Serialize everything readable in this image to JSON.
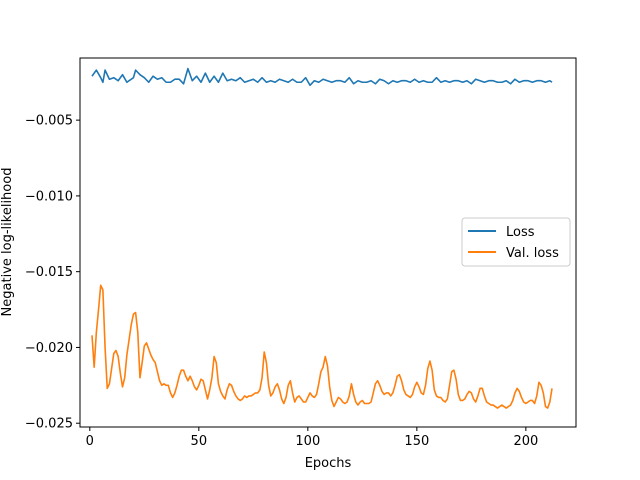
{
  "chart_data": {
    "type": "line",
    "title": "",
    "xlabel": "Epochs",
    "ylabel": "Negative log-likelihood",
    "xlim": [
      -4.5,
      223
    ],
    "ylim": [
      -0.02525,
      -0.0009
    ],
    "xticks": [
      0,
      50,
      100,
      150,
      200
    ],
    "xtick_labels": [
      "0",
      "50",
      "100",
      "150",
      "200"
    ],
    "yticks": [
      -0.025,
      -0.02,
      -0.015,
      -0.01,
      -0.005
    ],
    "ytick_labels": [
      "−0.025",
      "−0.020",
      "−0.015",
      "−0.010",
      "−0.005"
    ],
    "grid": false,
    "legend_position": "center-right",
    "series": [
      {
        "name": "Loss",
        "color": "#1f77b4",
        "x": [
          1,
          3,
          5,
          6,
          7,
          9,
          11,
          13,
          15,
          17,
          19,
          20,
          21,
          23,
          25,
          27,
          29,
          31,
          33,
          35,
          37,
          39,
          41,
          43,
          45,
          47,
          49,
          51,
          53,
          55,
          57,
          59,
          61,
          63,
          65,
          67,
          69,
          71,
          73,
          75,
          77,
          79,
          81,
          83,
          85,
          87,
          89,
          91,
          93,
          95,
          97,
          99,
          101,
          103,
          105,
          107,
          109,
          111,
          113,
          115,
          117,
          119,
          121,
          123,
          125,
          127,
          129,
          131,
          133,
          135,
          137,
          139,
          141,
          143,
          145,
          147,
          149,
          151,
          153,
          155,
          157,
          159,
          161,
          163,
          165,
          167,
          169,
          171,
          173,
          175,
          177,
          179,
          181,
          183,
          185,
          187,
          189,
          191,
          193,
          195,
          197,
          199,
          201,
          203,
          205,
          207,
          209,
          211,
          212
        ],
        "y": [
          -0.0021,
          -0.0017,
          -0.0022,
          -0.0025,
          -0.0017,
          -0.0023,
          -0.0022,
          -0.0024,
          -0.002,
          -0.0025,
          -0.0023,
          -0.0022,
          -0.0017,
          -0.002,
          -0.0022,
          -0.0025,
          -0.0021,
          -0.0023,
          -0.0022,
          -0.0025,
          -0.0025,
          -0.0023,
          -0.0023,
          -0.0026,
          -0.0016,
          -0.0024,
          -0.0021,
          -0.0025,
          -0.0019,
          -0.0025,
          -0.0021,
          -0.0025,
          -0.0019,
          -0.0024,
          -0.0023,
          -0.0024,
          -0.0022,
          -0.0025,
          -0.0024,
          -0.0023,
          -0.0025,
          -0.0022,
          -0.0025,
          -0.0024,
          -0.0025,
          -0.0023,
          -0.0024,
          -0.0025,
          -0.0023,
          -0.0025,
          -0.0025,
          -0.0022,
          -0.0027,
          -0.0024,
          -0.0025,
          -0.0023,
          -0.0024,
          -0.0025,
          -0.0024,
          -0.0024,
          -0.0025,
          -0.0022,
          -0.0026,
          -0.0024,
          -0.0025,
          -0.0025,
          -0.0024,
          -0.0026,
          -0.0023,
          -0.0024,
          -0.0026,
          -0.0024,
          -0.0025,
          -0.0024,
          -0.0024,
          -0.0025,
          -0.0023,
          -0.0025,
          -0.0024,
          -0.0025,
          -0.0025,
          -0.0022,
          -0.0025,
          -0.0024,
          -0.0025,
          -0.0024,
          -0.0024,
          -0.0025,
          -0.0024,
          -0.0026,
          -0.0023,
          -0.0024,
          -0.0025,
          -0.0024,
          -0.0024,
          -0.0025,
          -0.0025,
          -0.0024,
          -0.0026,
          -0.0023,
          -0.0025,
          -0.0024,
          -0.0024,
          -0.0025,
          -0.0024,
          -0.0024,
          -0.0025,
          -0.0024,
          -0.0025
        ]
      },
      {
        "name": "Val. loss",
        "color": "#ff7f0e",
        "x": [
          1,
          2,
          3,
          4,
          5,
          6,
          7,
          8,
          9,
          10,
          11,
          12,
          13,
          14,
          15,
          16,
          17,
          18,
          19,
          20,
          21,
          22,
          23,
          24,
          25,
          26,
          27,
          28,
          29,
          30,
          31,
          32,
          33,
          34,
          35,
          36,
          37,
          38,
          39,
          40,
          41,
          42,
          43,
          44,
          45,
          46,
          47,
          48,
          49,
          50,
          51,
          52,
          53,
          54,
          55,
          56,
          57,
          58,
          59,
          60,
          61,
          62,
          63,
          64,
          65,
          66,
          67,
          68,
          69,
          70,
          71,
          72,
          73,
          74,
          75,
          76,
          77,
          78,
          79,
          80,
          81,
          82,
          83,
          84,
          85,
          86,
          87,
          88,
          89,
          90,
          91,
          92,
          93,
          94,
          95,
          96,
          97,
          98,
          99,
          100,
          101,
          102,
          103,
          104,
          105,
          106,
          107,
          108,
          109,
          110,
          111,
          112,
          113,
          114,
          115,
          116,
          117,
          118,
          119,
          120,
          121,
          122,
          123,
          124,
          125,
          126,
          127,
          128,
          129,
          130,
          131,
          132,
          133,
          134,
          135,
          136,
          137,
          138,
          139,
          140,
          141,
          142,
          143,
          144,
          145,
          146,
          147,
          148,
          149,
          150,
          151,
          152,
          153,
          154,
          155,
          156,
          157,
          158,
          159,
          160,
          161,
          162,
          163,
          164,
          165,
          166,
          167,
          168,
          169,
          170,
          171,
          172,
          173,
          174,
          175,
          176,
          177,
          178,
          179,
          180,
          181,
          182,
          183,
          184,
          185,
          186,
          187,
          188,
          189,
          190,
          191,
          192,
          193,
          194,
          195,
          196,
          197,
          198,
          199,
          200,
          201,
          202,
          203,
          204,
          205,
          206,
          207,
          208,
          209,
          210,
          211,
          212
        ],
        "y": [
          -0.0192,
          -0.0213,
          -0.019,
          -0.0175,
          -0.0159,
          -0.0162,
          -0.02,
          -0.0227,
          -0.0224,
          -0.0214,
          -0.0204,
          -0.0202,
          -0.0206,
          -0.0217,
          -0.0226,
          -0.022,
          -0.0205,
          -0.0195,
          -0.0185,
          -0.0178,
          -0.0177,
          -0.019,
          -0.022,
          -0.021,
          -0.0199,
          -0.0197,
          -0.0201,
          -0.0205,
          -0.0208,
          -0.021,
          -0.0216,
          -0.0222,
          -0.0225,
          -0.0224,
          -0.0225,
          -0.0225,
          -0.023,
          -0.0233,
          -0.023,
          -0.0225,
          -0.0219,
          -0.0215,
          -0.0215,
          -0.0219,
          -0.0222,
          -0.0219,
          -0.0222,
          -0.0226,
          -0.0228,
          -0.0225,
          -0.0221,
          -0.0222,
          -0.0228,
          -0.0234,
          -0.0228,
          -0.022,
          -0.0206,
          -0.021,
          -0.0224,
          -0.0229,
          -0.0232,
          -0.0234,
          -0.0228,
          -0.0224,
          -0.0225,
          -0.0229,
          -0.0232,
          -0.0234,
          -0.0235,
          -0.0234,
          -0.0232,
          -0.0233,
          -0.0232,
          -0.0232,
          -0.0231,
          -0.023,
          -0.023,
          -0.0228,
          -0.022,
          -0.0203,
          -0.021,
          -0.0225,
          -0.0232,
          -0.023,
          -0.0226,
          -0.0224,
          -0.0228,
          -0.0234,
          -0.0237,
          -0.0233,
          -0.0225,
          -0.0222,
          -0.023,
          -0.0236,
          -0.0233,
          -0.0232,
          -0.0234,
          -0.0236,
          -0.0236,
          -0.0233,
          -0.023,
          -0.0232,
          -0.0233,
          -0.0231,
          -0.0224,
          -0.0216,
          -0.0213,
          -0.0206,
          -0.0212,
          -0.0226,
          -0.0235,
          -0.0239,
          -0.0236,
          -0.0233,
          -0.0234,
          -0.0236,
          -0.0237,
          -0.0236,
          -0.0232,
          -0.0224,
          -0.0231,
          -0.0236,
          -0.0238,
          -0.0236,
          -0.0235,
          -0.0237,
          -0.0237,
          -0.0237,
          -0.0236,
          -0.023,
          -0.0224,
          -0.0222,
          -0.0225,
          -0.0229,
          -0.0231,
          -0.023,
          -0.023,
          -0.0232,
          -0.023,
          -0.0225,
          -0.0219,
          -0.0218,
          -0.0222,
          -0.0228,
          -0.0231,
          -0.0232,
          -0.0233,
          -0.0231,
          -0.0226,
          -0.0223,
          -0.0226,
          -0.023,
          -0.0231,
          -0.0225,
          -0.0214,
          -0.0209,
          -0.0215,
          -0.0228,
          -0.0232,
          -0.0233,
          -0.0233,
          -0.0235,
          -0.0236,
          -0.0234,
          -0.0225,
          -0.0216,
          -0.0215,
          -0.0221,
          -0.0231,
          -0.0235,
          -0.0235,
          -0.0234,
          -0.0231,
          -0.0229,
          -0.023,
          -0.0234,
          -0.0236,
          -0.0232,
          -0.0227,
          -0.0227,
          -0.0232,
          -0.0236,
          -0.0237,
          -0.0238,
          -0.0238,
          -0.0239,
          -0.024,
          -0.0239,
          -0.0238,
          -0.0239,
          -0.024,
          -0.0239,
          -0.0238,
          -0.0235,
          -0.023,
          -0.0227,
          -0.0229,
          -0.0233,
          -0.0236,
          -0.0237,
          -0.0236,
          -0.0235,
          -0.0235,
          -0.0237,
          -0.0232,
          -0.0223,
          -0.0225,
          -0.023,
          -0.0239,
          -0.024,
          -0.0236,
          -0.0227
        ]
      }
    ]
  }
}
